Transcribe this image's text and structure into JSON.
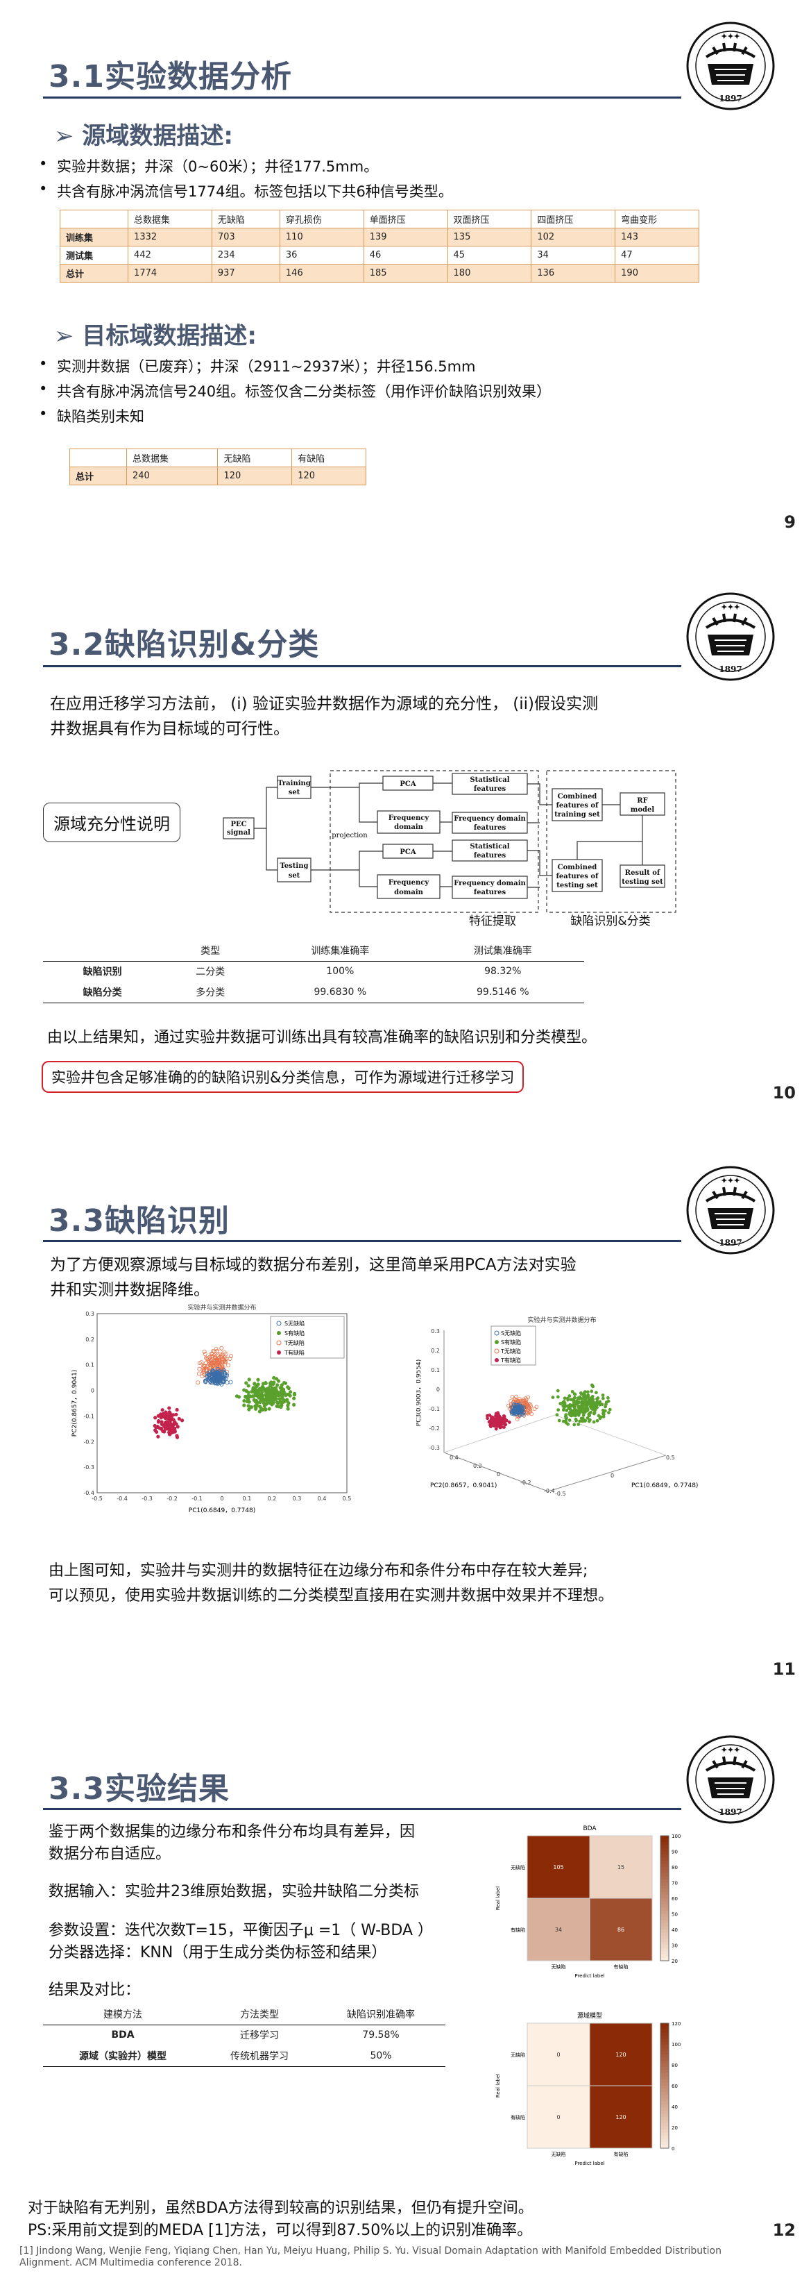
{
  "s1": {
    "title": "3.1实验数据分析",
    "page": "9",
    "sub1": "源域数据描述:",
    "b1": "实验井数据；井深（0~60米）；井径177.5mm。",
    "b2": "共含有脉冲涡流信号1774组。标签包括以下共6种信号类型。",
    "table1": {
      "head": [
        "",
        "总数据集",
        "无缺陷",
        "穿孔损伤",
        "单面挤压",
        "双面挤压",
        "四面挤压",
        "弯曲变形"
      ],
      "rows": [
        [
          "训练集",
          "1332",
          "703",
          "110",
          "139",
          "135",
          "102",
          "143"
        ],
        [
          "测试集",
          "442",
          "234",
          "36",
          "46",
          "45",
          "34",
          "47"
        ],
        [
          "总计",
          "1774",
          "937",
          "146",
          "185",
          "180",
          "136",
          "190"
        ]
      ]
    },
    "sub2": "目标域数据描述:",
    "b3": "实测井数据（已废弃）；井深（2911~2937米）；井径156.5mm",
    "b4": "共含有脉冲涡流信号240组。标签仅含二分类标签（用作评价缺陷识别效果）",
    "b5": "缺陷类别未知",
    "table2": {
      "head": [
        "",
        "总数据集",
        "无缺陷",
        "有缺陷"
      ],
      "rows": [
        [
          "总计",
          "240",
          "120",
          "120"
        ]
      ]
    }
  },
  "s2": {
    "title": "3.2缺陷识别&分类",
    "page": "10",
    "intro1": "在应用迁移学习方法前， (i) 验证实验井数据作为源域的充分性， (ii)假设实测",
    "intro2": "井数据具有作为目标域的可行性。",
    "callout": "源域充分性说明",
    "flow": {
      "pec": "PEC",
      "pec2": "signal",
      "training": "Training",
      "training2": "set",
      "testing": "Testing",
      "testing2": "set",
      "projection": "projection",
      "pca1": "PCA",
      "pca2": "PCA",
      "fd1": "Frequency",
      "fd1b": "domain",
      "fd2": "Frequency",
      "fd2b": "domain",
      "sf1": "Statistical",
      "sf1b": "features",
      "sf2": "Statistical",
      "sf2b": "features",
      "fdf1": "Frequency domain",
      "fdf1b": "features",
      "fdf2": "Frequency domain",
      "fdf2b": "features",
      "ctr": "Combined",
      "ctr2": "features of",
      "ctr3": "training set",
      "cte": "Combined",
      "cte2": "features of",
      "cte3": "testing set",
      "rf": "RF",
      "rf2": "model",
      "res": "Result of",
      "res2": "testing set",
      "lbl1": "特征提取",
      "lbl2": "缺陷识别&分类"
    },
    "table": {
      "head": [
        "",
        "类型",
        "训练集准确率",
        "测试集准确率"
      ],
      "rows": [
        [
          "缺陷识别",
          "二分类",
          "100%",
          "98.32%"
        ],
        [
          "缺陷分类",
          "多分类",
          "99.6830 %",
          "99.5146 %"
        ]
      ]
    },
    "conc": "由以上结果知，通过实验井数据可训练出具有较高准确率的缺陷识别和分类模型。",
    "red": "实验井包含足够准确的的缺陷识别&分类信息，可作为源域进行迁移学习"
  },
  "s3": {
    "title": "3.3缺陷识别",
    "page": "11",
    "intro1": "为了方便观察源域与目标域的数据分布差别，这里简单采用PCA方法对实验",
    "intro2": "井和实测井数据降维。",
    "chart_data": [
      {
        "type": "scatter",
        "title": "实验井与实测井数据分布",
        "xlabel": "PC1(0.6849，0.7748)",
        "ylabel": "PC2(0.8657，0.9041)",
        "xlim": [
          -0.5,
          0.5
        ],
        "ylim": [
          -0.4,
          0.3
        ],
        "xticks": [
          "-0.5",
          "-0.4",
          "-0.3",
          "-0.2",
          "-0.1",
          "0",
          "0.1",
          "0.2",
          "0.3",
          "0.4",
          "0.5"
        ],
        "yticks": [
          "0.3",
          "0.2",
          "0.1",
          "0",
          "-0.1",
          "-0.2",
          "-0.3",
          "-0.4"
        ],
        "legend": [
          "S无缺陷",
          "S有缺陷",
          "T无缺陷",
          "T有缺陷"
        ],
        "series": [
          {
            "name": "S无缺陷",
            "center": [
              -0.02,
              0.05
            ],
            "spread": [
              0.06,
              0.04
            ]
          },
          {
            "name": "S有缺陷",
            "center": [
              0.18,
              -0.02
            ],
            "spread": [
              0.14,
              0.08
            ]
          },
          {
            "name": "T无缺陷",
            "center": [
              -0.03,
              0.1
            ],
            "spread": [
              0.08,
              0.08
            ]
          },
          {
            "name": "T有缺陷",
            "center": [
              -0.22,
              -0.13
            ],
            "spread": [
              0.07,
              0.07
            ]
          }
        ]
      },
      {
        "type": "scatter",
        "title": "实验井与实测井数据分布",
        "xlabel": "PC1(0.6849，0.7748)",
        "ylabel": "PC3(0.9003，0.9554)",
        "zlabel": "PC2(0.8657，0.9041)",
        "yticks": [
          "0.3",
          "0.2",
          "0.1",
          "0",
          "-0.1",
          "-0.2",
          "-0.3"
        ],
        "xticks": [
          "-0.5",
          "0",
          "0.5"
        ],
        "zticks": [
          "0.4",
          "0.2",
          "0",
          "-0.2",
          "-0.4"
        ],
        "legend": [
          "S无缺陷",
          "S有缺陷",
          "T无缺陷",
          "T有缺陷"
        ]
      }
    ],
    "conc1": "由上图可知，实验井与实测井的数据特征在边缘分布和条件分布中存在较大差异;",
    "conc2": "可以预见，使用实验井数据训练的二分类模型直接用在实测井数据中效果并不理想。"
  },
  "s4": {
    "title": "3.3实验结果",
    "page": "12",
    "p1a": "鉴于两个数据集的边缘分布和条件分布均具有差异，因",
    "p1b": "数据分布自适应。",
    "p2": "数据输入：实验井23维原始数据，实验井缺陷二分类标",
    "p3a": "参数设置：迭代次数T=15，平衡因子μ =1（ W-BDA ）",
    "p3b": "分类器选择：KNN（用于生成分类伪标签和结果）",
    "p4": "结果及对比：",
    "cmp": {
      "head": [
        "建模方法",
        "方法类型",
        "缺陷识别准确率"
      ],
      "rows": [
        [
          "BDA",
          "迁移学习",
          "79.58%"
        ],
        [
          "源域（实验井）模型",
          "传统机器学习",
          "50%"
        ]
      ]
    },
    "chart_data": [
      {
        "type": "heatmap",
        "title": "BDA",
        "xlabel": "Predict label",
        "ylabel": "Real label",
        "x": [
          "无缺陷",
          "有缺陷"
        ],
        "y": [
          "无缺陷",
          "有缺陷"
        ],
        "values": [
          [
            105,
            15
          ],
          [
            34,
            86
          ]
        ],
        "colorbar": [
          "100",
          "90",
          "80",
          "70",
          "60",
          "50",
          "40",
          "30",
          "20"
        ]
      },
      {
        "type": "heatmap",
        "title": "源域模型",
        "xlabel": "Predict label",
        "ylabel": "Real label",
        "x": [
          "无缺陷",
          "有缺陷"
        ],
        "y": [
          "无缺陷",
          "有缺陷"
        ],
        "values": [
          [
            0,
            120
          ],
          [
            0,
            120
          ]
        ],
        "colorbar": [
          "120",
          "100",
          "80",
          "60",
          "40",
          "20",
          "0"
        ]
      }
    ],
    "conc1": "对于缺陷有无判别，虽然BDA方法得到较高的识别结果，但仍有提升空间。",
    "conc2": "PS:采用前文提到的MEDA [1]方法，可以得到87.50%以上的识别准确率。",
    "foot1": "[1] Jindong Wang, Wenjie Feng, Yiqiang Chen, Han Yu, Meiyu Huang, Philip S. Yu. Visual Domain Adaptation with Manifold Embedded Distribution",
    "foot2": "Alignment. ACM Multimedia conference 2018."
  },
  "colors": {
    "title": "#4a5872",
    "rule": "#22385e",
    "accent": "#d8202a",
    "tableBorder": "#d99a5b",
    "heatDark": "#8a2a06",
    "heatLight": "#fdf0e2"
  }
}
